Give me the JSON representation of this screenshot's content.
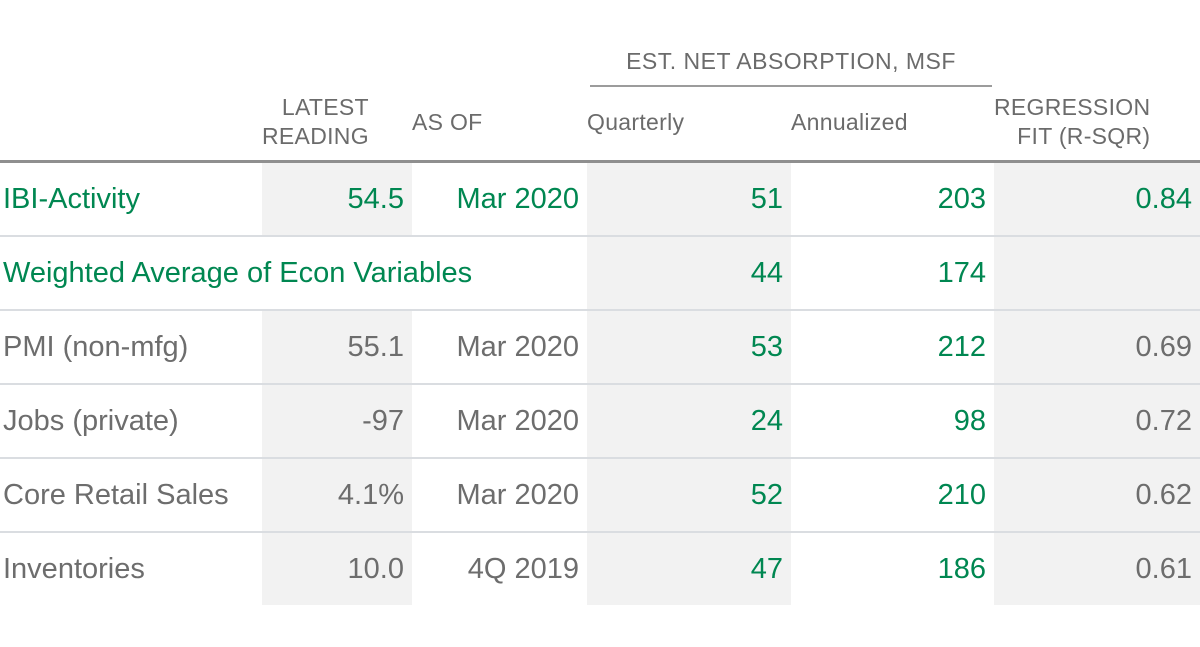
{
  "colors": {
    "accent_green": "#008751",
    "text_gray": "#6d6d6d",
    "column_band": "#f2f2f2",
    "header_rule": "#8f8f8f",
    "row_rule": "#dadde1"
  },
  "header": {
    "group_title": "EST. NET ABSORPTION, MSF",
    "latest_line1": "LATEST",
    "latest_line2": "READING",
    "asof": "AS OF",
    "quarterly": "Quarterly",
    "annualized": "Annualized",
    "regression_line1": "REGRESSION",
    "regression_line2": "FIT (R-SQR)"
  },
  "table": {
    "rows": [
      {
        "label": "IBI-Activity",
        "latest": "54.5",
        "asof": "Mar 2020",
        "quarterly": "51",
        "annualized": "203",
        "regression": "0.84"
      },
      {
        "label": "Weighted Average of Econ Variables",
        "latest": "",
        "asof": "",
        "quarterly": "44",
        "annualized": "174",
        "regression": ""
      },
      {
        "label": "PMI (non-mfg)",
        "latest": "55.1",
        "asof": "Mar 2020",
        "quarterly": "53",
        "annualized": "212",
        "regression": "0.69"
      },
      {
        "label": "Jobs (private)",
        "latest": "-97",
        "asof": "Mar 2020",
        "quarterly": "24",
        "annualized": "98",
        "regression": "0.72"
      },
      {
        "label": "Core Retail Sales",
        "latest": "4.1%",
        "asof": "Mar 2020",
        "quarterly": "52",
        "annualized": "210",
        "regression": "0.62"
      },
      {
        "label": "Inventories",
        "latest": "10.0",
        "asof": "4Q 2019",
        "quarterly": "47",
        "annualized": "186",
        "regression": "0.61"
      }
    ]
  },
  "chart_data": {
    "type": "table",
    "title": "",
    "column_groups": [
      {
        "label": "EST. NET ABSORPTION, MSF",
        "columns": [
          "Quarterly",
          "Annualized"
        ]
      }
    ],
    "columns": [
      "",
      "LATEST READING",
      "AS OF",
      "Quarterly",
      "Annualized",
      "REGRESSION FIT (R-SQR)"
    ],
    "rows": [
      [
        "IBI-Activity",
        "54.5",
        "Mar 2020",
        51,
        203,
        0.84
      ],
      [
        "Weighted Average of Econ Variables",
        "",
        "",
        44,
        174,
        null
      ],
      [
        "PMI (non-mfg)",
        "55.1",
        "Mar 2020",
        53,
        212,
        0.69
      ],
      [
        "Jobs (private)",
        "-97",
        "Mar 2020",
        24,
        98,
        0.72
      ],
      [
        "Core Retail Sales",
        "4.1%",
        "Mar 2020",
        52,
        210,
        0.62
      ],
      [
        "Inventories",
        "10.0",
        "4Q 2019",
        47,
        186,
        0.61
      ]
    ],
    "notes": "Green highlighted rows: IBI-Activity and Weighted Average of Econ Variables; Quarterly and Annualized values green in all rows; Latest Reading, Quarterly and Regression columns have light gray band shading"
  }
}
